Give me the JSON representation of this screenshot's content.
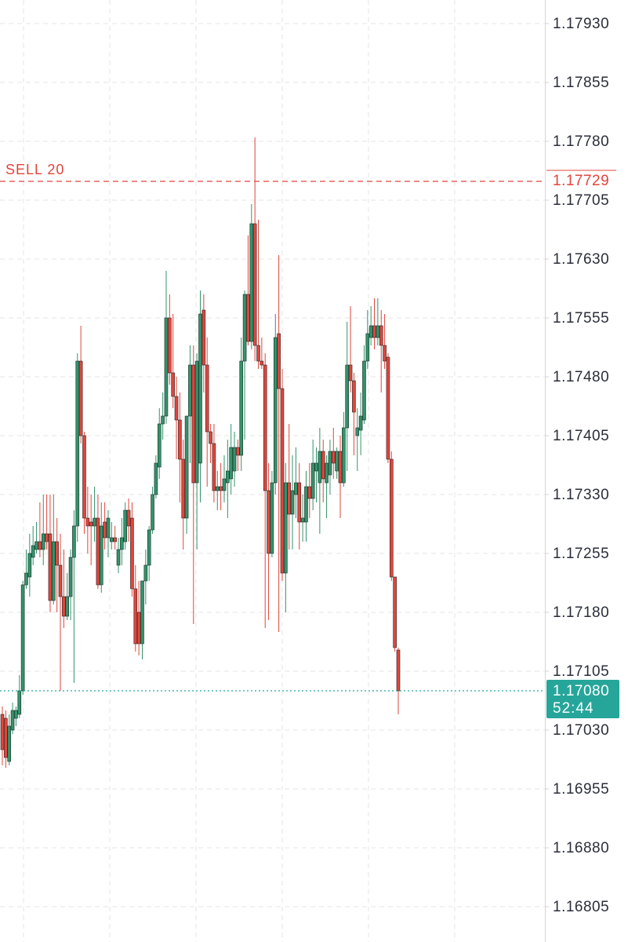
{
  "chart_data": {
    "type": "candlestick",
    "ylim": [
      1.1676,
      1.1796
    ],
    "yticks": [
      {
        "value": 1.1793,
        "label": "1.17930"
      },
      1.17855,
      {
        "value": 1.1778,
        "label": "1.17780"
      },
      1.17705,
      {
        "value": 1.1763,
        "label": "1.17630"
      },
      1.17555,
      {
        "value": 1.1748,
        "label": "1.17480"
      },
      1.17405,
      {
        "value": 1.1733,
        "label": "1.17330"
      },
      1.17255,
      {
        "value": 1.1718,
        "label": "1.17180"
      },
      1.17105,
      {
        "value": 1.1703,
        "label": "1.17030"
      },
      1.16955,
      {
        "value": 1.1688,
        "label": "1.16880"
      },
      1.16805
    ],
    "grid": true,
    "up_color": "#33936b",
    "down_color": "#e2453c",
    "open": [
      1.1705,
      1.17045,
      1.1699,
      1.1703,
      1.17045,
      1.1705,
      1.1708,
      1.17215,
      1.17225,
      1.1725,
      1.1726,
      1.1727,
      1.1726,
      1.1728,
      1.1728,
      1.17195,
      1.1727,
      1.1724,
      1.172,
      1.17175,
      1.172,
      1.1725,
      1.1729,
      1.175,
      1.17405,
      1.173,
      1.17295,
      1.1729,
      1.173,
      1.17215,
      1.17295,
      1.17275,
      1.1727,
      1.17275,
      1.1724,
      1.1726,
      1.1727,
      1.1731,
      1.173,
      1.1721,
      1.1718,
      1.1714,
      1.1722,
      1.1724,
      1.17285,
      1.1733,
      1.17365,
      1.1742,
      1.1743,
      1.17555,
      1.17485,
      1.17455,
      1.17425,
      1.17375,
      1.173,
      1.1743,
      1.17495,
      1.17345,
      1.1737,
      1.17565,
      1.17495,
      1.1741,
      1.17395,
      1.17335,
      1.1734,
      1.17335,
      1.17345,
      1.1735,
      1.1736,
      1.1739,
      1.1738,
      1.175,
      1.17585,
      1.17525,
      1.17675,
      1.1752,
      1.175,
      1.17495,
      1.17335,
      1.17255,
      1.17345,
      1.17535,
      1.17465,
      1.1723,
      1.17345,
      1.17305,
      1.1733,
      1.17345,
      1.17295,
      1.17295,
      1.1734,
      1.17325,
      1.1736,
      1.17345,
      1.17385,
      1.17345,
      1.17355,
      1.17385,
      1.1736,
      1.17385,
      1.17345,
      1.17415,
      1.17495,
      1.17475,
      1.17405,
      1.17412,
      1.17425,
      1.175,
      1.1753,
      1.17545,
      1.1753,
      1.17545,
      1.1752,
      1.17505,
      1.17375,
      1.17225,
      1.17132
    ],
    "high": [
      1.1706,
      1.17055,
      1.1705,
      1.17065,
      1.1706,
      1.171,
      1.1722,
      1.1726,
      1.1728,
      1.1729,
      1.17295,
      1.1732,
      1.1733,
      1.1733,
      1.1733,
      1.1733,
      1.173,
      1.1728,
      1.1726,
      1.1723,
      1.1726,
      1.1731,
      1.1751,
      1.17545,
      1.1741,
      1.1734,
      1.1733,
      1.1734,
      1.1733,
      1.1732,
      1.1732,
      1.1731,
      1.17295,
      1.1729,
      1.17275,
      1.173,
      1.1732,
      1.17325,
      1.1732,
      1.1724,
      1.1722,
      1.1722,
      1.1726,
      1.1729,
      1.1734,
      1.1738,
      1.1744,
      1.1746,
      1.17615,
      1.17585,
      1.1756,
      1.1748,
      1.1746,
      1.174,
      1.1743,
      1.1752,
      1.1752,
      1.1751,
      1.1759,
      1.17585,
      1.1753,
      1.1742,
      1.1742,
      1.1736,
      1.1737,
      1.1738,
      1.174,
      1.1742,
      1.1741,
      1.174,
      1.1753,
      1.1759,
      1.1766,
      1.177,
      1.17785,
      1.1768,
      1.1753,
      1.1751,
      1.1737,
      1.1736,
      1.1756,
      1.17635,
      1.1749,
      1.1737,
      1.1742,
      1.1738,
      1.1739,
      1.1737,
      1.1733,
      1.1736,
      1.1737,
      1.174,
      1.1739,
      1.17415,
      1.174,
      1.1738,
      1.174,
      1.17415,
      1.1739,
      1.17405,
      1.17435,
      1.1755,
      1.1757,
      1.17485,
      1.1744,
      1.1746,
      1.1752,
      1.17565,
      1.1757,
      1.1758,
      1.1758,
      1.17565,
      1.1756,
      1.1751,
      1.17385,
      1.17225,
      1.17135
    ],
    "low": [
      1.16985,
      1.16982,
      1.16985,
      1.17025,
      1.17035,
      1.17045,
      1.17075,
      1.1721,
      1.172,
      1.1724,
      1.17255,
      1.1725,
      1.1724,
      1.1726,
      1.1718,
      1.1719,
      1.1718,
      1.1708,
      1.1716,
      1.1717,
      1.1717,
      1.1709,
      1.1727,
      1.17395,
      1.1728,
      1.17255,
      1.1724,
      1.1727,
      1.1721,
      1.17205,
      1.1726,
      1.1725,
      1.1726,
      1.1726,
      1.1723,
      1.1724,
      1.1726,
      1.1727,
      1.172,
      1.1713,
      1.17125,
      1.1712,
      1.1719,
      1.1722,
      1.1728,
      1.17325,
      1.1735,
      1.174,
      1.1742,
      1.1747,
      1.1744,
      1.17375,
      1.1732,
      1.1726,
      1.1728,
      1.1737,
      1.17165,
      1.1726,
      1.1732,
      1.1746,
      1.1734,
      1.1737,
      1.1732,
      1.1731,
      1.1731,
      1.1732,
      1.173,
      1.1733,
      1.1734,
      1.1736,
      1.1736,
      1.174,
      1.1752,
      1.17515,
      1.175,
      1.1749,
      1.1749,
      1.1716,
      1.1717,
      1.1725,
      1.1733,
      1.17155,
      1.1722,
      1.1718,
      1.1726,
      1.1726,
      1.173,
      1.1726,
      1.1727,
      1.1727,
      1.173,
      1.1731,
      1.1732,
      1.1728,
      1.1732,
      1.173,
      1.1733,
      1.1735,
      1.1735,
      1.173,
      1.1734,
      1.1736,
      1.1746,
      1.1738,
      1.1736,
      1.1738,
      1.1742,
      1.1749,
      1.1752,
      1.17515,
      1.1752,
      1.1746,
      1.1749,
      1.1737,
      1.1722,
      1.1713,
      1.1705
    ],
    "close": [
      1.17005,
      1.16995,
      1.17035,
      1.17055,
      1.17055,
      1.1708,
      1.17215,
      1.1723,
      1.17255,
      1.17265,
      1.1727,
      1.1726,
      1.1728,
      1.1727,
      1.17195,
      1.1727,
      1.1724,
      1.172,
      1.17175,
      1.172,
      1.1725,
      1.1729,
      1.175,
      1.17405,
      1.173,
      1.1729,
      1.1729,
      1.173,
      1.17215,
      1.1729,
      1.17275,
      1.173,
      1.17275,
      1.1727,
      1.1726,
      1.17275,
      1.1731,
      1.1729,
      1.1721,
      1.1714,
      1.1714,
      1.1722,
      1.1724,
      1.17285,
      1.1733,
      1.1737,
      1.1742,
      1.1743,
      1.17555,
      1.17485,
      1.17455,
      1.17425,
      1.17375,
      1.173,
      1.1743,
      1.17495,
      1.17345,
      1.175,
      1.1756,
      1.17495,
      1.1741,
      1.17395,
      1.17335,
      1.1734,
      1.17335,
      1.1735,
      1.1736,
      1.1739,
      1.1739,
      1.1738,
      1.175,
      1.17585,
      1.17525,
      1.17675,
      1.1752,
      1.175,
      1.17495,
      1.17335,
      1.17255,
      1.17345,
      1.1753,
      1.17465,
      1.1723,
      1.17345,
      1.17305,
      1.17335,
      1.17345,
      1.17295,
      1.173,
      1.1734,
      1.17325,
      1.1737,
      1.1737,
      1.17385,
      1.1735,
      1.1737,
      1.17385,
      1.1737,
      1.17385,
      1.17345,
      1.17415,
      1.17495,
      1.17475,
      1.17435,
      1.17415,
      1.1743,
      1.175,
      1.17535,
      1.17545,
      1.1753,
      1.17545,
      1.1752,
      1.175,
      1.17375,
      1.17225,
      1.17135,
      1.1708
    ],
    "sell_line": {
      "label": "SELL 20",
      "price": 1.17729,
      "color": "#e2453c"
    },
    "current_price": {
      "value": 1.1708,
      "label": "1.17080",
      "timer": "52:44",
      "color": "#26a69a"
    }
  }
}
